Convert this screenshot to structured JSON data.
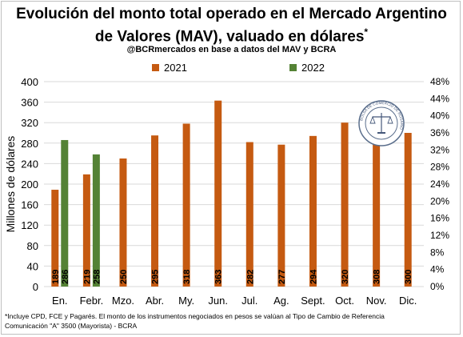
{
  "title_line1": "Evolución del monto total operado en el Mercado Argentino",
  "title_line2": "de Valores (MAV), valuado en dólares",
  "title_mark": "*",
  "subtitle": "@BCRmercados  en base a datos del MAV y BCRA",
  "footnote_line1": "*Incluye CPD, FCE y Pagarés. El monto de los instrumentos  negociados en pesos se valúan al Tipo de Cambio de Referencia",
  "footnote_line2": "Comunicación \"A\" 3500 (Mayorista) - BCRA",
  "logo_text": "BOLSA DE COMERCIO DE ROSARIO",
  "chart_data": {
    "type": "bar",
    "categories": [
      "En.",
      "Febr.",
      "Mzo.",
      "Abr.",
      "My.",
      "Jun.",
      "Jul.",
      "Ag.",
      "Sept.",
      "Oct.",
      "Nov.",
      "Dic."
    ],
    "series": [
      {
        "name": "2021",
        "color": "#c55a11",
        "values": [
          189,
          219,
          250,
          295,
          318,
          363,
          282,
          277,
          294,
          320,
          308,
          300
        ]
      },
      {
        "name": "2022",
        "color": "#548235",
        "values": [
          286,
          258,
          null,
          null,
          null,
          null,
          null,
          null,
          null,
          null,
          null,
          null
        ]
      }
    ],
    "ylabel": "Millones de dólares",
    "ylim": [
      0,
      400
    ],
    "yticks": [
      "0",
      "40",
      "80",
      "120",
      "160",
      "200",
      "240",
      "280",
      "320",
      "360",
      "400"
    ],
    "y2ticks": [
      "0%",
      "4%",
      "8%",
      "12%",
      "16%",
      "20%",
      "24%",
      "28%",
      "32%",
      "36%",
      "40%",
      "44%",
      "48%"
    ],
    "y2lim": [
      0,
      48
    ],
    "grid": true,
    "legend_position": "top"
  }
}
